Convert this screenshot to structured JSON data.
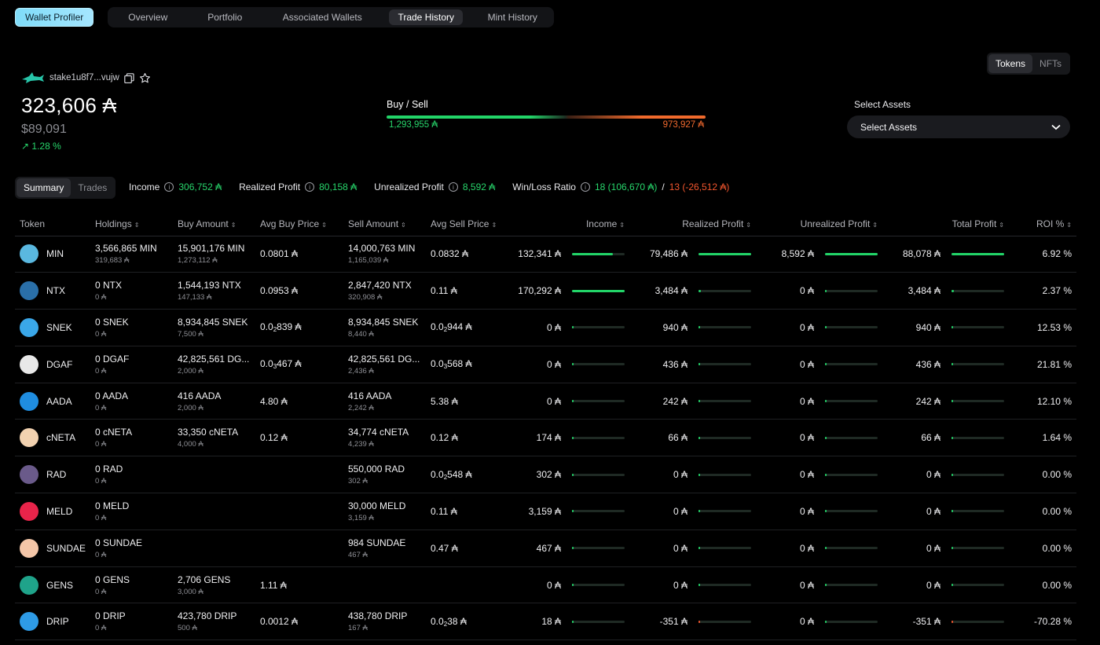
{
  "nav": {
    "brand": "Wallet Profiler",
    "tabs": [
      "Overview",
      "Portfolio",
      "Associated Wallets",
      "Trade History",
      "Mint History"
    ],
    "active_tab": "Trade History"
  },
  "wallet": {
    "address": "stake1u8f7...vujw",
    "balance": "323,606 ₳",
    "usd": "$89,091",
    "change": "↗ 1.28 %"
  },
  "buy_sell": {
    "title": "Buy / Sell",
    "buy": "1,293,955 ₳",
    "sell": "973,927 ₳"
  },
  "asset_toggle": {
    "tokens": "Tokens",
    "nfts": "NFTs",
    "active": "Tokens"
  },
  "select_assets": {
    "label": "Select Assets",
    "value": "Select Assets"
  },
  "summary_tabs": {
    "summary": "Summary",
    "trades": "Trades",
    "active": "Summary"
  },
  "stats": {
    "income_label": "Income",
    "income": "306,752 ₳",
    "realized_label": "Realized Profit",
    "realized": "80,158 ₳",
    "unrealized_label": "Unrealized Profit",
    "unrealized": "8,592 ₳",
    "winloss_label": "Win/Loss Ratio",
    "wins": "18 (106,670 ₳)",
    "sep": "/",
    "losses": "13 (-26,512 ₳)"
  },
  "table": {
    "headers": {
      "token": "Token",
      "holdings": "Holdings",
      "buy_amount": "Buy Amount",
      "avg_buy": "Avg Buy Price",
      "sell_amount": "Sell Amount",
      "avg_sell": "Avg Sell Price",
      "income": "Income",
      "realized": "Realized Profit",
      "unrealized": "Unrealized Profit",
      "total": "Total Profit",
      "roi": "ROI %"
    },
    "rows": [
      {
        "token": "MIN",
        "icon_color": "#5ab8e0",
        "icon": "min-icon",
        "holdings": "3,566,865 MIN",
        "holdings_sub": "319,683 ₳",
        "buy": "15,901,176 MIN",
        "buy_sub": "1,273,112 ₳",
        "avg_buy": "0.0801 ₳",
        "sell": "14,000,763 MIN",
        "sell_sub": "1,165,039 ₳",
        "avg_sell": "0.0832 ₳",
        "income": "132,341 ₳",
        "income_pct": 0.78,
        "realized": "79,486 ₳",
        "realized_pct": 1.0,
        "unrealized": "8,592 ₳",
        "unrealized_pct": 1.0,
        "total": "88,078 ₳",
        "total_pct": 1.0,
        "roi": "6.92 %"
      },
      {
        "token": "NTX",
        "icon_color": "#2a6fa8",
        "icon": "ntx-icon",
        "holdings": "0 NTX",
        "holdings_sub": "0 ₳",
        "buy": "1,544,193 NTX",
        "buy_sub": "147,133 ₳",
        "avg_buy": "0.0953 ₳",
        "sell": "2,847,420 NTX",
        "sell_sub": "320,908 ₳",
        "avg_sell": "0.11 ₳",
        "income": "170,292 ₳",
        "income_pct": 1.0,
        "realized": "3,484 ₳",
        "realized_pct": 0.05,
        "unrealized": "0 ₳",
        "unrealized_pct": 0,
        "total": "3,484 ₳",
        "total_pct": 0.05,
        "roi": "2.37 %"
      },
      {
        "token": "SNEK",
        "icon_color": "#3aa7e8",
        "icon": "snek-icon",
        "holdings": "0 SNEK",
        "holdings_sub": "0 ₳",
        "buy": "8,934,845 SNEK",
        "buy_sub": "7,500 ₳",
        "avg_buy_a": "0.0",
        "avg_buy_s": "2",
        "avg_buy_b": "839 ₳",
        "sell": "8,934,845 SNEK",
        "sell_sub": "8,440 ₳",
        "avg_sell_a": "0.0",
        "avg_sell_s": "2",
        "avg_sell_b": "944 ₳",
        "income": "0 ₳",
        "income_pct": 0,
        "realized": "940 ₳",
        "realized_pct": 0.02,
        "unrealized": "0 ₳",
        "unrealized_pct": 0,
        "total": "940 ₳",
        "total_pct": 0.02,
        "roi": "12.53 %"
      },
      {
        "token": "DGAF",
        "icon_color": "#e8e8e8",
        "icon": "dgaf-icon",
        "holdings": "0 DGAF",
        "holdings_sub": "0 ₳",
        "buy": "42,825,561 DG...",
        "buy_sub": "2,000 ₳",
        "avg_buy_a": "0.0",
        "avg_buy_s": "3",
        "avg_buy_b": "467 ₳",
        "sell": "42,825,561 DG...",
        "sell_sub": "2,436 ₳",
        "avg_sell_a": "0.0",
        "avg_sell_s": "3",
        "avg_sell_b": "568 ₳",
        "income": "0 ₳",
        "income_pct": 0,
        "realized": "436 ₳",
        "realized_pct": 0.01,
        "unrealized": "0 ₳",
        "unrealized_pct": 0,
        "total": "436 ₳",
        "total_pct": 0.01,
        "roi": "21.81 %"
      },
      {
        "token": "AADA",
        "icon_color": "#1f8de0",
        "icon": "aada-icon",
        "holdings": "0 AADA",
        "holdings_sub": "0 ₳",
        "buy": "416 AADA",
        "buy_sub": "2,000 ₳",
        "avg_buy": "4.80 ₳",
        "sell": "416 AADA",
        "sell_sub": "2,242 ₳",
        "avg_sell": "5.38 ₳",
        "income": "0 ₳",
        "income_pct": 0,
        "realized": "242 ₳",
        "realized_pct": 0.01,
        "unrealized": "0 ₳",
        "unrealized_pct": 0,
        "total": "242 ₳",
        "total_pct": 0.01,
        "roi": "12.10 %"
      },
      {
        "token": "cNETA",
        "icon_color": "#f2d2b0",
        "icon": "cneta-icon",
        "holdings": "0 cNETA",
        "holdings_sub": "0 ₳",
        "buy": "33,350 cNETA",
        "buy_sub": "4,000 ₳",
        "avg_buy": "0.12 ₳",
        "sell": "34,774 cNETA",
        "sell_sub": "4,239 ₳",
        "avg_sell": "0.12 ₳",
        "income": "174 ₳",
        "income_pct": 0.01,
        "realized": "66 ₳",
        "realized_pct": 0.01,
        "unrealized": "0 ₳",
        "unrealized_pct": 0,
        "total": "66 ₳",
        "total_pct": 0.01,
        "roi": "1.64 %"
      },
      {
        "token": "RAD",
        "icon_color": "#6a5a8a",
        "icon": "rad-icon",
        "holdings": "0 RAD",
        "holdings_sub": "0 ₳",
        "buy": "",
        "buy_sub": "",
        "avg_buy": "",
        "sell": "550,000 RAD",
        "sell_sub": "302 ₳",
        "avg_sell_a": "0.0",
        "avg_sell_s": "2",
        "avg_sell_b": "548 ₳",
        "income": "302 ₳",
        "income_pct": 0.01,
        "realized": "0 ₳",
        "realized_pct": 0,
        "unrealized": "0 ₳",
        "unrealized_pct": 0,
        "total": "0 ₳",
        "total_pct": 0,
        "roi": "0.00 %"
      },
      {
        "token": "MELD",
        "icon_color": "#e8244a",
        "icon": "meld-icon",
        "holdings": "0 MELD",
        "holdings_sub": "0 ₳",
        "buy": "",
        "buy_sub": "",
        "avg_buy": "",
        "sell": "30,000 MELD",
        "sell_sub": "3,159 ₳",
        "avg_sell": "0.11 ₳",
        "income": "3,159 ₳",
        "income_pct": 0.02,
        "realized": "0 ₳",
        "realized_pct": 0,
        "unrealized": "0 ₳",
        "unrealized_pct": 0,
        "total": "0 ₳",
        "total_pct": 0,
        "roi": "0.00 %"
      },
      {
        "token": "SUNDAE",
        "icon_color": "#f4c6a8",
        "icon": "sundae-icon",
        "holdings": "0 SUNDAE",
        "holdings_sub": "0 ₳",
        "buy": "",
        "buy_sub": "",
        "avg_buy": "",
        "sell": "984 SUNDAE",
        "sell_sub": "467 ₳",
        "avg_sell": "0.47 ₳",
        "income": "467 ₳",
        "income_pct": 0.01,
        "realized": "0 ₳",
        "realized_pct": 0,
        "unrealized": "0 ₳",
        "unrealized_pct": 0,
        "total": "0 ₳",
        "total_pct": 0,
        "roi": "0.00 %"
      },
      {
        "token": "GENS",
        "icon_color": "#1fa38a",
        "icon": "gens-icon",
        "holdings": "0 GENS",
        "holdings_sub": "0 ₳",
        "buy": "2,706 GENS",
        "buy_sub": "3,000 ₳",
        "avg_buy": "1.11 ₳",
        "sell": "",
        "sell_sub": "",
        "avg_sell": "",
        "income": "0 ₳",
        "income_pct": 0,
        "realized": "0 ₳",
        "realized_pct": 0,
        "unrealized": "0 ₳",
        "unrealized_pct": 0,
        "total": "0 ₳",
        "total_pct": 0,
        "roi": "0.00 %"
      },
      {
        "token": "DRIP",
        "icon_color": "#2e9be6",
        "icon": "drip-icon",
        "holdings": "0 DRIP",
        "holdings_sub": "0 ₳",
        "buy": "423,780 DRIP",
        "buy_sub": "500 ₳",
        "avg_buy": "0.0012 ₳",
        "sell": "438,780 DRIP",
        "sell_sub": "167 ₳",
        "avg_sell_a": "0.0",
        "avg_sell_s": "2",
        "avg_sell_b": "38 ₳",
        "income": "18 ₳",
        "income_pct": 0.01,
        "realized": "-351 ₳",
        "realized_pct": -0.01,
        "unrealized": "0 ₳",
        "unrealized_pct": 0,
        "total": "-351 ₳",
        "total_pct": -0.01,
        "roi": "-70.28 %"
      }
    ]
  }
}
